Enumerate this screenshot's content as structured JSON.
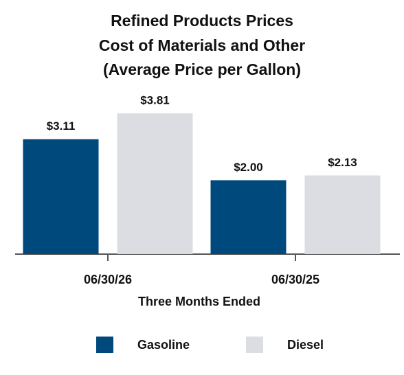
{
  "chart_data": {
    "type": "bar",
    "title": [
      "Refined Products Prices",
      "Cost of Materials and Other",
      "(Average Price per Gallon)"
    ],
    "x_label": "Three Months Ended",
    "categories": [
      "06/30/26",
      "06/30/25"
    ],
    "series": [
      {
        "name": "Gasoline",
        "color": "#00497c",
        "values": [
          3.11,
          2.0
        ],
        "value_labels": [
          "$3.11",
          "$2.00"
        ]
      },
      {
        "name": "Diesel",
        "color": "#dcdde3",
        "values": [
          3.81,
          2.13
        ],
        "value_labels": [
          "$3.81",
          "$2.13"
        ]
      }
    ],
    "legend": "bottom"
  }
}
